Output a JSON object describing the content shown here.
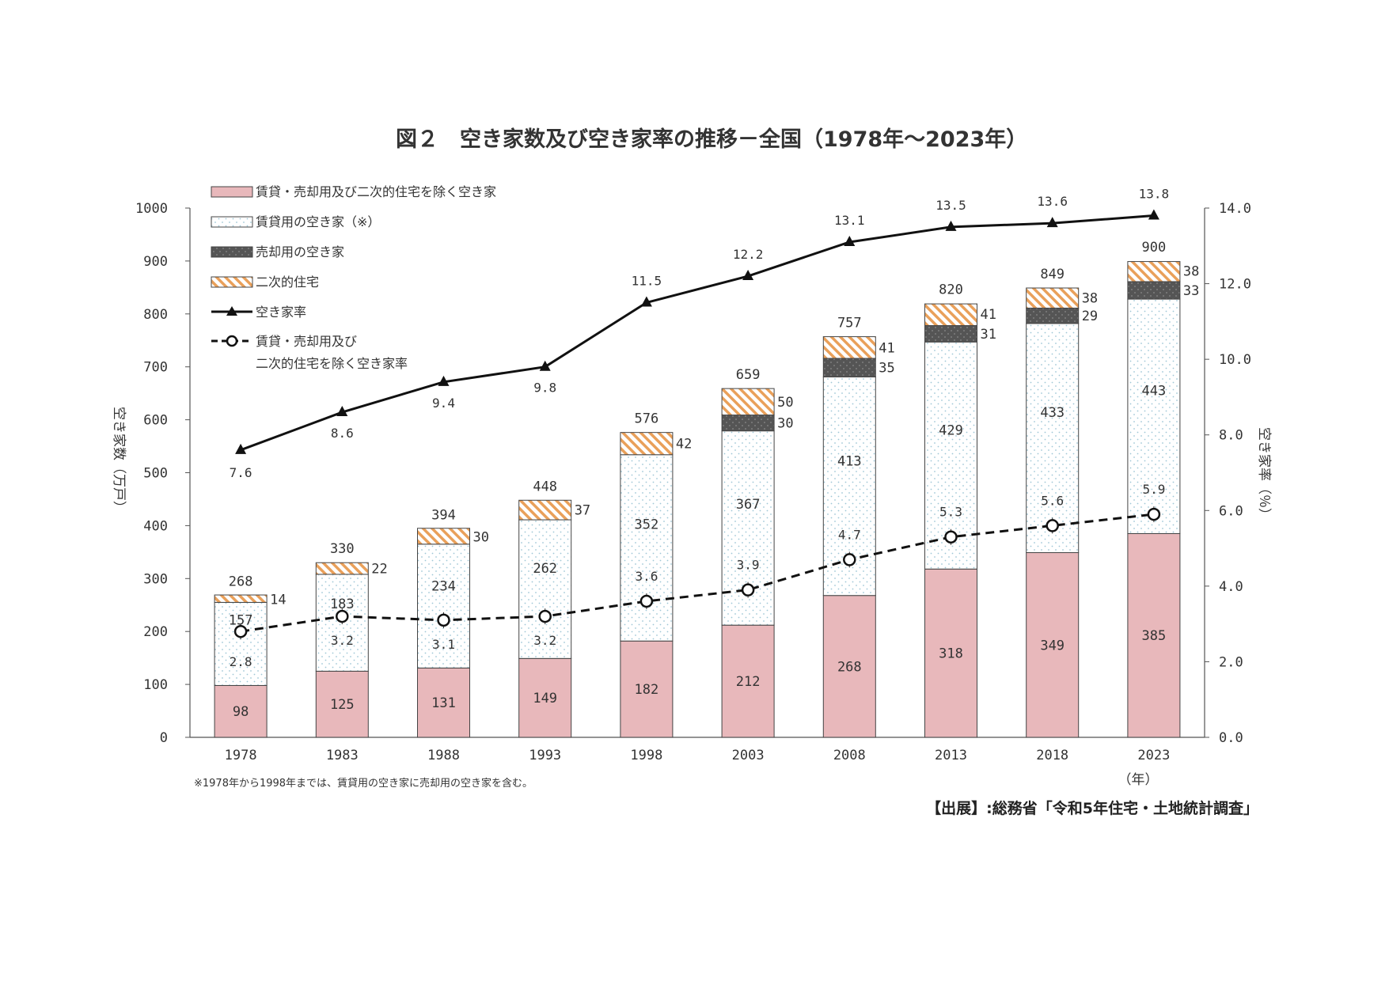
{
  "figure": {
    "title": "図２　空き家数及び空き家率の推移－全国（1978年～2023年）",
    "note": "※1978年から1998年までは、賃貸用の空き家に売却用の空き家を含む。",
    "source": "【出展】:総務省「令和5年住宅・土地統計調査」"
  },
  "colors": {
    "other_vacant": "#e8b8bb",
    "rental": "#ffffff",
    "for_sale": "#555555",
    "secondary_stripe": "#e9a05a",
    "line": "#111111"
  },
  "chart_data": {
    "type": "bar",
    "stacked": true,
    "categories": [
      "1978",
      "1983",
      "1988",
      "1993",
      "1998",
      "2003",
      "2008",
      "2013",
      "2018",
      "2023"
    ],
    "x_unit_label": "（年）",
    "series": [
      {
        "key": "other",
        "name": "賃貸・売却用及び二次的住宅を除く空き家",
        "values": [
          98,
          125,
          131,
          149,
          182,
          212,
          268,
          318,
          349,
          385
        ]
      },
      {
        "key": "rental",
        "name": "賃貸用の空き家（※）",
        "values": [
          157,
          183,
          234,
          262,
          352,
          367,
          413,
          429,
          433,
          443
        ]
      },
      {
        "key": "sale",
        "name": "売却用の空き家",
        "values": [
          0,
          0,
          0,
          0,
          0,
          30,
          35,
          31,
          29,
          33
        ]
      },
      {
        "key": "secondary",
        "name": "二次的住宅",
        "values": [
          14,
          22,
          30,
          37,
          42,
          50,
          41,
          41,
          38,
          38
        ]
      }
    ],
    "totals": [
      268,
      330,
      394,
      448,
      576,
      659,
      757,
      820,
      849,
      900
    ],
    "lines": [
      {
        "key": "rate",
        "name": "空き家率",
        "axis": "right",
        "values": [
          7.6,
          8.6,
          9.4,
          9.8,
          11.5,
          12.2,
          13.1,
          13.5,
          13.6,
          13.8
        ],
        "labels": [
          "7.6",
          "8.6",
          "9.4",
          "9.8",
          "11.5",
          "12.2",
          "13.1",
          "13.5",
          "13.6",
          "13.8"
        ]
      },
      {
        "key": "rate_other",
        "name_line1": "賃貸・売却用及び",
        "name_line2": "二次的住宅を除く空き家率",
        "axis": "right",
        "values": [
          2.8,
          3.2,
          3.1,
          3.2,
          3.6,
          3.9,
          4.7,
          5.3,
          5.6,
          5.9
        ],
        "labels": [
          "2.8",
          "3.2",
          "3.1",
          "3.2",
          "3.6",
          "3.9",
          "4.7",
          "5.3",
          "5.6",
          "5.9"
        ]
      }
    ],
    "ylabel_left": "空き家数（万戸）",
    "ylabel_right": "空き家率（％）",
    "ylim_left": [
      0,
      1000
    ],
    "ylim_right": [
      0,
      14
    ],
    "yticks_left": [
      "0",
      "100",
      "200",
      "300",
      "400",
      "500",
      "600",
      "700",
      "800",
      "900",
      "1000"
    ],
    "yticks_right": [
      "0.0",
      "2.0",
      "4.0",
      "6.0",
      "8.0",
      "10.0",
      "12.0",
      "14.0"
    ],
    "legend_position": "top-left"
  }
}
